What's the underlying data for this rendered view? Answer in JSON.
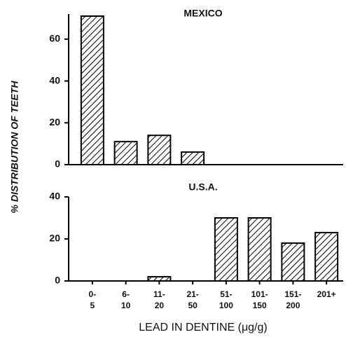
{
  "chart_data": [
    {
      "type": "bar",
      "title": "MEXICO",
      "ylabel": "% DISTRIBUTION OF TEETH",
      "color": "#000000",
      "hatch": true,
      "values": [
        71,
        11,
        14,
        6,
        0,
        0,
        0,
        0
      ],
      "ylim": [
        0,
        72
      ],
      "yticks": [
        0,
        20,
        40,
        60
      ]
    },
    {
      "type": "bar",
      "title": "U.S.A.",
      "xlabel": "LEAD IN DENTINE (μg/g)",
      "color": "#000000",
      "hatch": true,
      "categories": [
        [
          "0-",
          "5"
        ],
        [
          "6-",
          "10"
        ],
        [
          "11-",
          "20"
        ],
        [
          "21-",
          "50"
        ],
        [
          "51-",
          "100"
        ],
        [
          "101-",
          "150"
        ],
        [
          "151-",
          "200"
        ],
        [
          "201+"
        ]
      ],
      "values": [
        0,
        0,
        2,
        0,
        30,
        30,
        18,
        23
      ],
      "ylim": [
        0,
        40
      ],
      "yticks": [
        0,
        20,
        40
      ]
    }
  ]
}
